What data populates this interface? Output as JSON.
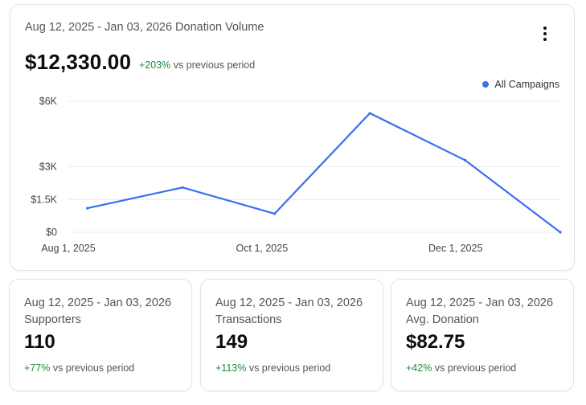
{
  "main": {
    "title": "Aug 12, 2025 - Jan 03, 2026 Donation Volume",
    "menu_icon": "more-vertical-icon",
    "total": "$12,330.00",
    "change": "+203%",
    "change_suffix": "vs previous period"
  },
  "colors": {
    "line": "#3b6ff0",
    "positive": "#1f8a3b",
    "grid": "#ececec"
  },
  "chart_data": {
    "type": "line",
    "series": [
      {
        "name": "All Campaigns",
        "x": [
          "2025-08-07",
          "2025-09-06",
          "2025-10-05",
          "2025-11-04",
          "2025-12-04",
          "2026-01-03"
        ],
        "y": [
          1100,
          2050,
          850,
          5450,
          3300,
          0
        ]
      }
    ],
    "x_ticks": [
      {
        "date": "2025-08-01",
        "label": "Aug 1, 2025"
      },
      {
        "date": "2025-10-01",
        "label": "Oct 1, 2025"
      },
      {
        "date": "2025-12-01",
        "label": "Dec 1, 2025"
      }
    ],
    "y_ticks": [
      {
        "value": 0,
        "label": "$0"
      },
      {
        "value": 1500,
        "label": "$1.5K"
      },
      {
        "value": 3000,
        "label": "$3K"
      },
      {
        "value": 6000,
        "label": "$6K"
      }
    ],
    "ylim": [
      0,
      6000
    ],
    "xlim": [
      "2025-08-01",
      "2026-01-03"
    ],
    "grid": true,
    "legend": "top-right",
    "title": "",
    "xlabel": "",
    "ylabel": ""
  },
  "cards": [
    {
      "date": "Aug 12, 2025 - Jan 03, 2026",
      "label": "Supporters",
      "value": "110",
      "change": "+77%",
      "change_suffix": "vs previous period"
    },
    {
      "date": "Aug 12, 2025 - Jan 03, 2026",
      "label": "Transactions",
      "value": "149",
      "change": "+113%",
      "change_suffix": "vs previous period"
    },
    {
      "date": "Aug 12, 2025 - Jan 03, 2026",
      "label": "Avg. Donation",
      "value": "$82.75",
      "change": "+42%",
      "change_suffix": "vs previous period"
    }
  ]
}
